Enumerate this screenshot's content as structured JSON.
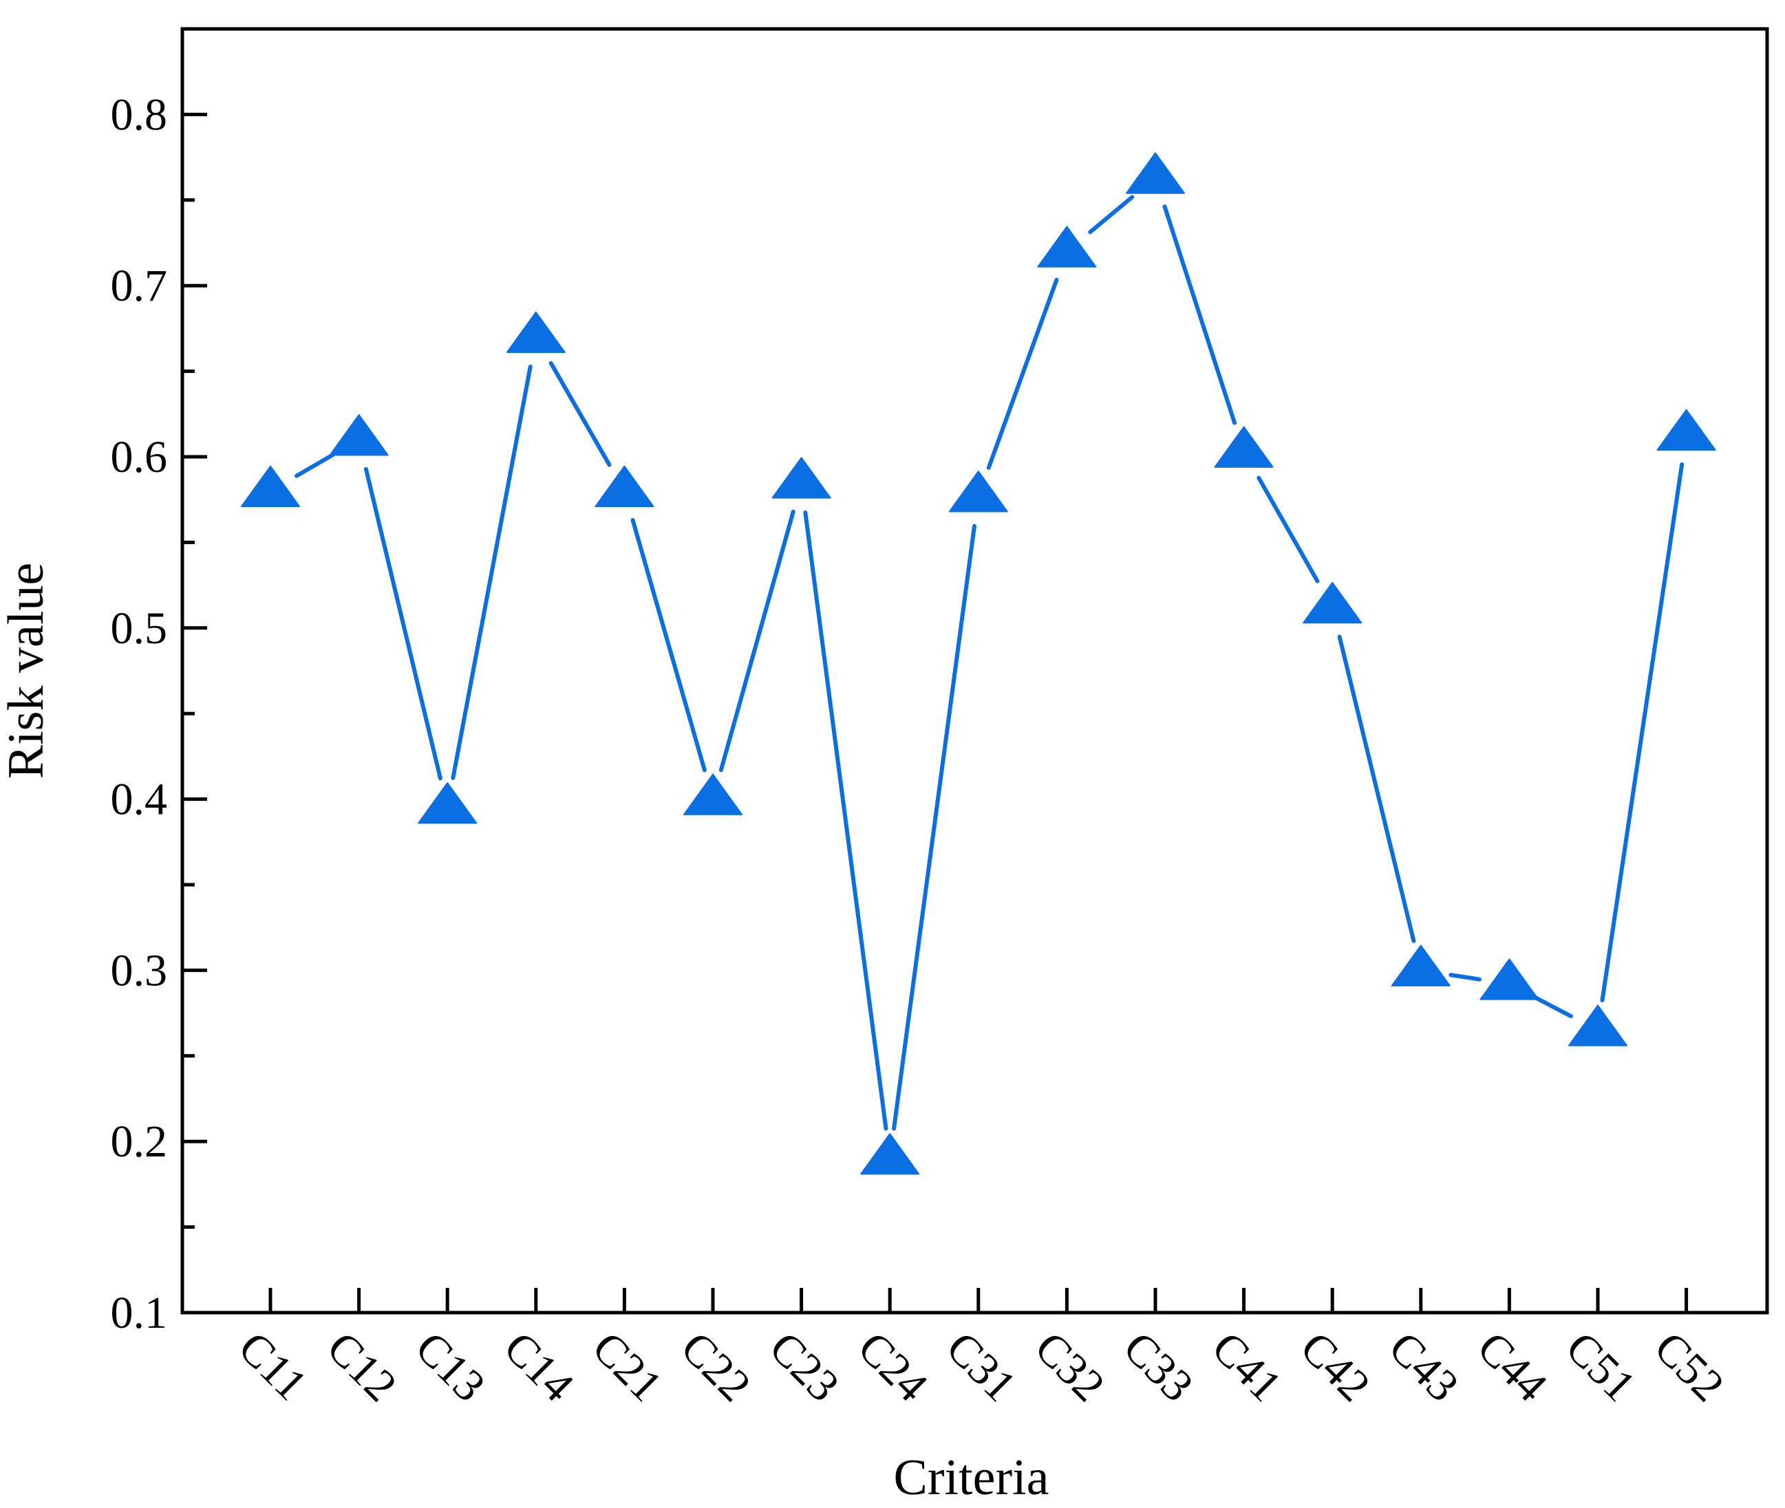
{
  "chart_data": {
    "type": "line",
    "xlabel": "Criteria",
    "ylabel": "Risk value",
    "categories": [
      "C11",
      "C12",
      "C13",
      "C14",
      "C21",
      "C22",
      "C23",
      "C24",
      "C31",
      "C32",
      "C33",
      "C41",
      "C42",
      "C43",
      "C44",
      "C51",
      "C52"
    ],
    "series": [
      {
        "values": [
          0.58,
          0.61,
          0.395,
          0.67,
          0.58,
          0.4,
          0.585,
          0.19,
          0.577,
          0.72,
          0.763,
          0.603,
          0.512,
          0.3,
          0.292,
          0.265,
          0.613
        ],
        "color": "#0a6fe3",
        "marker": "triangle"
      }
    ],
    "ylim": [
      0.1,
      0.85
    ],
    "yticks": [
      "0.1",
      "0.2",
      "0.3",
      "0.4",
      "0.5",
      "0.6",
      "0.7",
      "0.8"
    ],
    "grid": false,
    "legend": "none"
  }
}
